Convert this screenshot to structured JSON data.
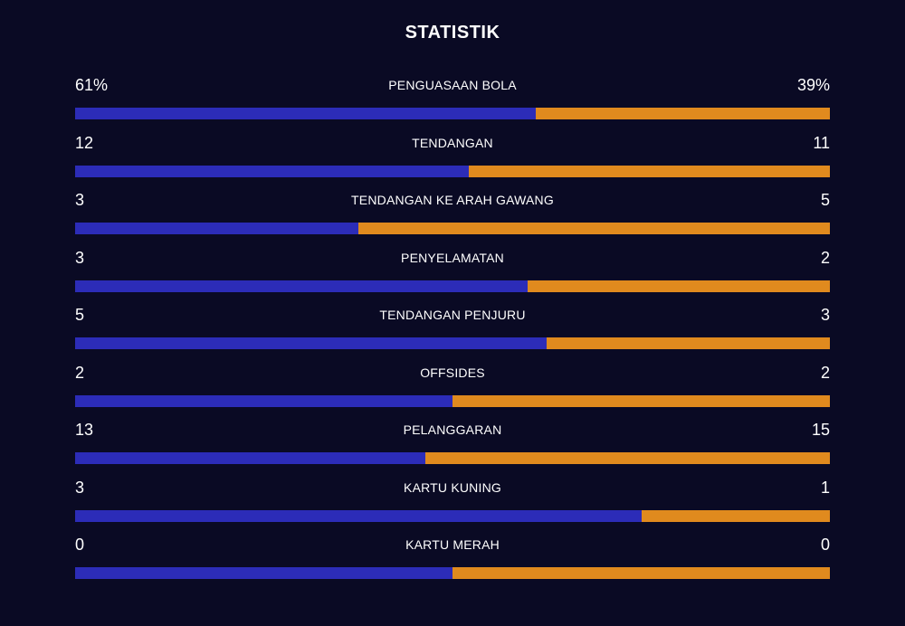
{
  "title": "STATISTIK",
  "colors": {
    "background": "#0a0a24",
    "home_bar": "#2c2cb8",
    "away_bar": "#e08a1e",
    "text": "#ffffff"
  },
  "chart_data": {
    "type": "bar",
    "title": "STATISTIK",
    "categories": [
      "PENGUASAAN BOLA",
      "TENDANGAN",
      "TENDANGAN KE ARAH GAWANG",
      "PENYELAMATAN",
      "TENDANGAN PENJURU",
      "OFFSIDES",
      "PELANGGARAN",
      "KARTU KUNING",
      "KARTU MERAH"
    ],
    "series": [
      {
        "values": [
          61,
          12,
          3,
          3,
          5,
          2,
          13,
          3,
          0
        ]
      },
      {
        "values": [
          39,
          11,
          5,
          2,
          3,
          2,
          15,
          1,
          0
        ]
      }
    ],
    "stats": [
      {
        "label": "PENGUASAAN BOLA",
        "home": "61%",
        "away": "39%",
        "home_value": 61,
        "away_value": 39
      },
      {
        "label": "TENDANGAN",
        "home": "12",
        "away": "11",
        "home_value": 12,
        "away_value": 11
      },
      {
        "label": "TENDANGAN KE ARAH GAWANG",
        "home": "3",
        "away": "5",
        "home_value": 3,
        "away_value": 5
      },
      {
        "label": "PENYELAMATAN",
        "home": "3",
        "away": "2",
        "home_value": 3,
        "away_value": 2
      },
      {
        "label": "TENDANGAN PENJURU",
        "home": "5",
        "away": "3",
        "home_value": 5,
        "away_value": 3
      },
      {
        "label": "OFFSIDES",
        "home": "2",
        "away": "2",
        "home_value": 2,
        "away_value": 2
      },
      {
        "label": "PELANGGARAN",
        "home": "13",
        "away": "15",
        "home_value": 13,
        "away_value": 15
      },
      {
        "label": "KARTU KUNING",
        "home": "3",
        "away": "1",
        "home_value": 3,
        "away_value": 1
      },
      {
        "label": "KARTU MERAH",
        "home": "0",
        "away": "0",
        "home_value": 0,
        "away_value": 0
      }
    ]
  }
}
